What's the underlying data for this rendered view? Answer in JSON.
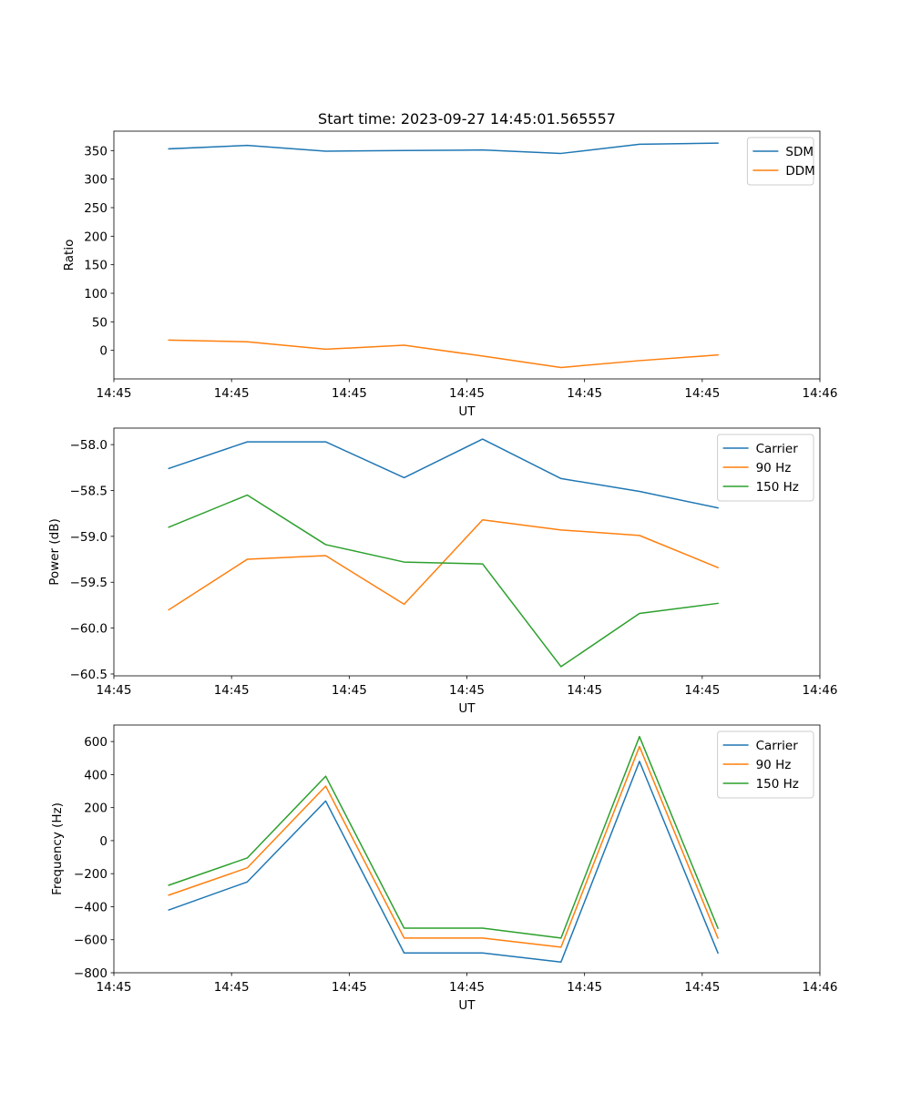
{
  "figure_title": "Start time: 2023-09-27 14:45:01.565557",
  "colors": {
    "blue": "#1f77b4",
    "orange": "#ff7f0e",
    "green": "#2ca02c"
  },
  "chart_data": [
    {
      "type": "line",
      "title": "Start time: 2023-09-27 14:45:01.565557",
      "xlabel": "UT",
      "ylabel": "Ratio",
      "legend_position": "top-right",
      "grid": false,
      "x": [
        1,
        2,
        3,
        4,
        5,
        6,
        7,
        8
      ],
      "xlim": [
        0.3,
        9.3
      ],
      "x_tick_positions": [
        0.3,
        1.8,
        3.3,
        4.8,
        6.3,
        7.8,
        9.3
      ],
      "x_tick_labels": [
        "14:45",
        "14:45",
        "14:45",
        "14:45",
        "14:45",
        "14:45",
        "14:46"
      ],
      "ylim": [
        -50,
        384
      ],
      "y_ticks": [
        0,
        50,
        100,
        150,
        200,
        250,
        300,
        350
      ],
      "y_tick_labels": [
        "0",
        "50",
        "100",
        "150",
        "200",
        "250",
        "300",
        "350"
      ],
      "series": [
        {
          "name": "SDM",
          "color": "#1f77b4",
          "values": [
            353,
            359,
            349,
            350,
            351,
            345,
            361,
            363
          ]
        },
        {
          "name": "DDM",
          "color": "#ff7f0e",
          "values": [
            18,
            15,
            2,
            9,
            -10,
            -30,
            -18,
            -8
          ]
        }
      ]
    },
    {
      "type": "line",
      "title": "",
      "xlabel": "UT",
      "ylabel": "Power (dB)",
      "legend_position": "top-right",
      "grid": false,
      "x": [
        1,
        2,
        3,
        4,
        5,
        6,
        7,
        8
      ],
      "xlim": [
        0.3,
        9.3
      ],
      "x_tick_positions": [
        0.3,
        1.8,
        3.3,
        4.8,
        6.3,
        7.8,
        9.3
      ],
      "x_tick_labels": [
        "14:45",
        "14:45",
        "14:45",
        "14:45",
        "14:45",
        "14:45",
        "14:46"
      ],
      "ylim": [
        -60.52,
        -57.82
      ],
      "y_ticks": [
        -60.5,
        -60.0,
        -59.5,
        -59.0,
        -58.5,
        -58.0
      ],
      "y_tick_labels": [
        "−60.5",
        "−60.0",
        "−59.5",
        "−59.0",
        "−58.5",
        "−58.0"
      ],
      "series": [
        {
          "name": "Carrier",
          "color": "#1f77b4",
          "values": [
            -58.26,
            -57.97,
            -57.97,
            -58.36,
            -57.94,
            -58.37,
            -58.51,
            -58.69
          ]
        },
        {
          "name": "90 Hz",
          "color": "#ff7f0e",
          "values": [
            -59.8,
            -59.25,
            -59.21,
            -59.74,
            -58.82,
            -58.93,
            -58.99,
            -59.34
          ]
        },
        {
          "name": "150 Hz",
          "color": "#2ca02c",
          "values": [
            -58.9,
            -58.55,
            -59.09,
            -59.28,
            -59.3,
            -60.42,
            -59.84,
            -59.73
          ]
        }
      ]
    },
    {
      "type": "line",
      "title": "",
      "xlabel": "UT",
      "ylabel": "Frequency (Hz)",
      "legend_position": "top-right",
      "grid": false,
      "x": [
        1,
        2,
        3,
        4,
        5,
        6,
        7,
        8
      ],
      "xlim": [
        0.3,
        9.3
      ],
      "x_tick_positions": [
        0.3,
        1.8,
        3.3,
        4.8,
        6.3,
        7.8,
        9.3
      ],
      "x_tick_labels": [
        "14:45",
        "14:45",
        "14:45",
        "14:45",
        "14:45",
        "14:45",
        "14:46"
      ],
      "ylim": [
        -800,
        700
      ],
      "y_ticks": [
        -800,
        -600,
        -400,
        -200,
        0,
        200,
        400,
        600
      ],
      "y_tick_labels": [
        "−800",
        "−600",
        "−400",
        "−200",
        "0",
        "200",
        "400",
        "600"
      ],
      "series": [
        {
          "name": "Carrier",
          "color": "#1f77b4",
          "values": [
            -420,
            -250,
            240,
            -680,
            -680,
            -735,
            480,
            -680
          ]
        },
        {
          "name": "90 Hz",
          "color": "#ff7f0e",
          "values": [
            -330,
            -165,
            330,
            -590,
            -590,
            -645,
            570,
            -590
          ]
        },
        {
          "name": "150 Hz",
          "color": "#2ca02c",
          "values": [
            -270,
            -105,
            390,
            -530,
            -530,
            -590,
            630,
            -530
          ]
        }
      ]
    }
  ]
}
